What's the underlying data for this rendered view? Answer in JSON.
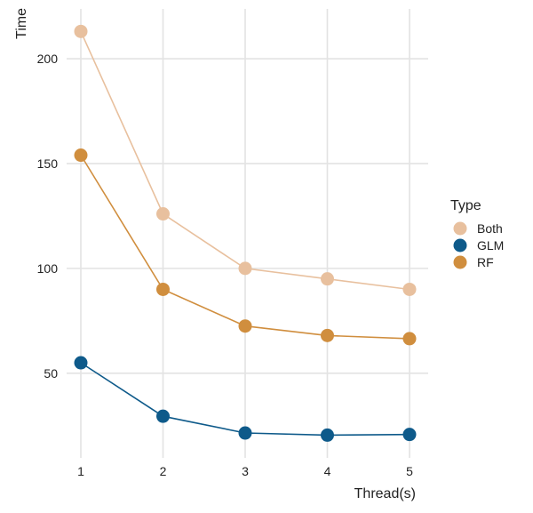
{
  "chart_data": {
    "type": "line",
    "title": "",
    "xlabel": "Thread(s)",
    "ylabel": "Time",
    "x": [
      1,
      2,
      3,
      4,
      5
    ],
    "xlim": [
      1,
      5
    ],
    "ylim": [
      16,
      214
    ],
    "y_ticks": [
      50,
      100,
      150,
      200
    ],
    "grid": true,
    "markers": true,
    "legend": {
      "title": "Type",
      "placement": "right"
    },
    "series": [
      {
        "name": "Both",
        "color": "#e8c09e",
        "values": [
          213,
          126,
          100,
          95,
          90
        ]
      },
      {
        "name": "GLM",
        "color": "#0e5a8a",
        "values": [
          55,
          29.5,
          21.5,
          20.5,
          20.8
        ]
      },
      {
        "name": "RF",
        "color": "#d08e3e",
        "values": [
          154,
          90,
          72.5,
          68,
          66.5
        ]
      }
    ]
  }
}
